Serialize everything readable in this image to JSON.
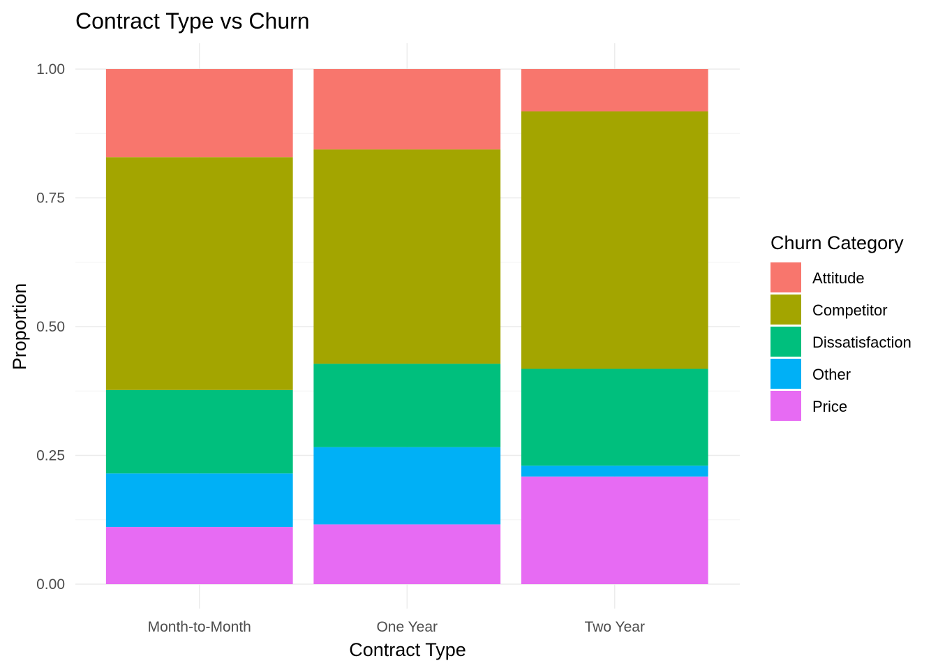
{
  "chart_data": {
    "type": "bar",
    "stacked": true,
    "title": "Contract Type vs Churn",
    "xlabel": "Contract Type",
    "ylabel": "Proportion",
    "ylim": [
      0,
      1
    ],
    "yticks": [
      "0.00",
      "0.25",
      "0.50",
      "0.75",
      "1.00"
    ],
    "categories": [
      "Month-to-Month",
      "One Year",
      "Two Year"
    ],
    "series": [
      {
        "name": "Price",
        "color": "#E76BF3",
        "values": [
          0.111,
          0.116,
          0.209
        ]
      },
      {
        "name": "Other",
        "color": "#00B0F6",
        "values": [
          0.104,
          0.15,
          0.021
        ]
      },
      {
        "name": "Dissatisfaction",
        "color": "#00BF7D",
        "values": [
          0.162,
          0.162,
          0.188
        ]
      },
      {
        "name": "Competitor",
        "color": "#A3A500",
        "values": [
          0.452,
          0.416,
          0.5
        ]
      },
      {
        "name": "Attitude",
        "color": "#F8766D",
        "values": [
          0.171,
          0.156,
          0.082
        ]
      }
    ],
    "legend": {
      "title": "Churn Category",
      "position": "right",
      "entries": [
        "Attitude",
        "Competitor",
        "Dissatisfaction",
        "Other",
        "Price"
      ]
    },
    "grid": true
  }
}
